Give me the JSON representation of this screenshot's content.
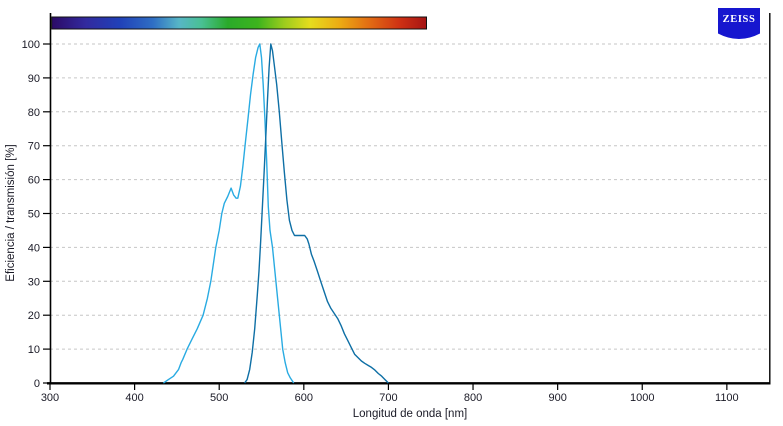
{
  "header": {
    "logo_text": "ZEISS",
    "logo_color": "#1616cf"
  },
  "chart_data": {
    "type": "line",
    "title": "",
    "xlabel": "Longitud de onda [nm]",
    "ylabel": "Eficiencia / transmisión [%]",
    "xlim": [
      300,
      1151
    ],
    "ylim": [
      0,
      100
    ],
    "x_ticks": [
      300,
      400,
      500,
      600,
      700,
      800,
      900,
      1000,
      1100
    ],
    "y_ticks": [
      0,
      10,
      20,
      30,
      40,
      50,
      60,
      70,
      80,
      90,
      100
    ],
    "grid": "horizontal-dashed",
    "grid_color": "#c6c6c6",
    "axis_color": "#000000",
    "legend_position": "none",
    "spectrum_bar": {
      "start_nm": 302,
      "end_nm": 745,
      "gradient": [
        {
          "offset": 0.0,
          "color": "#2b0a66"
        },
        {
          "offset": 0.09,
          "color": "#322a9e"
        },
        {
          "offset": 0.18,
          "color": "#2040b8"
        },
        {
          "offset": 0.27,
          "color": "#2f6ec4"
        },
        {
          "offset": 0.34,
          "color": "#57b6c6"
        },
        {
          "offset": 0.4,
          "color": "#49c093"
        },
        {
          "offset": 0.47,
          "color": "#2aaa2a"
        },
        {
          "offset": 0.55,
          "color": "#3db41e"
        },
        {
          "offset": 0.62,
          "color": "#9ccc1e"
        },
        {
          "offset": 0.69,
          "color": "#e6dc1e"
        },
        {
          "offset": 0.77,
          "color": "#ecaa14"
        },
        {
          "offset": 0.85,
          "color": "#e16a14"
        },
        {
          "offset": 0.93,
          "color": "#ce3014"
        },
        {
          "offset": 1.0,
          "color": "#a51414"
        }
      ]
    },
    "series": [
      {
        "name": "light-blue-curve",
        "color": "#29abe2",
        "points": [
          [
            434,
            0
          ],
          [
            440,
            1
          ],
          [
            446,
            2
          ],
          [
            452,
            4
          ],
          [
            455,
            6
          ],
          [
            457,
            7
          ],
          [
            462,
            10
          ],
          [
            468,
            13
          ],
          [
            474,
            16
          ],
          [
            481,
            20
          ],
          [
            486,
            25
          ],
          [
            490,
            30
          ],
          [
            493,
            35
          ],
          [
            496,
            40
          ],
          [
            500,
            45
          ],
          [
            503,
            50
          ],
          [
            506,
            53
          ],
          [
            510,
            55
          ],
          [
            514,
            57.5
          ],
          [
            517,
            55.5
          ],
          [
            520,
            54.5
          ],
          [
            522,
            54.5
          ],
          [
            525,
            58
          ],
          [
            528,
            64
          ],
          [
            531,
            71
          ],
          [
            534,
            78
          ],
          [
            537,
            85
          ],
          [
            540,
            91
          ],
          [
            543,
            96
          ],
          [
            546,
            99
          ],
          [
            548,
            100
          ],
          [
            550,
            96
          ],
          [
            552,
            88
          ],
          [
            554,
            78
          ],
          [
            556,
            66
          ],
          [
            558,
            52
          ],
          [
            560,
            45
          ],
          [
            563,
            40
          ],
          [
            565,
            35
          ],
          [
            567,
            30
          ],
          [
            569,
            25
          ],
          [
            571,
            20
          ],
          [
            573,
            15
          ],
          [
            575,
            10
          ],
          [
            578,
            6
          ],
          [
            581,
            3
          ],
          [
            584,
            1.5
          ],
          [
            588,
            0
          ]
        ]
      },
      {
        "name": "dark-blue-curve",
        "color": "#0e6fa5",
        "points": [
          [
            530,
            0
          ],
          [
            533,
            1
          ],
          [
            536,
            4
          ],
          [
            539,
            9
          ],
          [
            542,
            16
          ],
          [
            545,
            26
          ],
          [
            547,
            33
          ],
          [
            549,
            42
          ],
          [
            551,
            52
          ],
          [
            553,
            62
          ],
          [
            555,
            72
          ],
          [
            557,
            83
          ],
          [
            559,
            93
          ],
          [
            561,
            100
          ],
          [
            563,
            98
          ],
          [
            565,
            94
          ],
          [
            568,
            88
          ],
          [
            571,
            80
          ],
          [
            574,
            71
          ],
          [
            577,
            62
          ],
          [
            580,
            54
          ],
          [
            583,
            48
          ],
          [
            586,
            45
          ],
          [
            589,
            43.5
          ],
          [
            593,
            43.5
          ],
          [
            597,
            43.5
          ],
          [
            601,
            43.5
          ],
          [
            604,
            42.5
          ],
          [
            606,
            41
          ],
          [
            609,
            38
          ],
          [
            612,
            36
          ],
          [
            616,
            33
          ],
          [
            620,
            30
          ],
          [
            624,
            27
          ],
          [
            628,
            24
          ],
          [
            632,
            22
          ],
          [
            636,
            20.5
          ],
          [
            640,
            19
          ],
          [
            644,
            17
          ],
          [
            648,
            14.5
          ],
          [
            652,
            12.5
          ],
          [
            656,
            10.5
          ],
          [
            660,
            8.5
          ],
          [
            664,
            7.5
          ],
          [
            668,
            6.5
          ],
          [
            672,
            5.8
          ],
          [
            676,
            5.2
          ],
          [
            680,
            4.6
          ],
          [
            684,
            3.8
          ],
          [
            688,
            2.8
          ],
          [
            692,
            2
          ],
          [
            696,
            1
          ],
          [
            700,
            0
          ]
        ]
      }
    ]
  }
}
